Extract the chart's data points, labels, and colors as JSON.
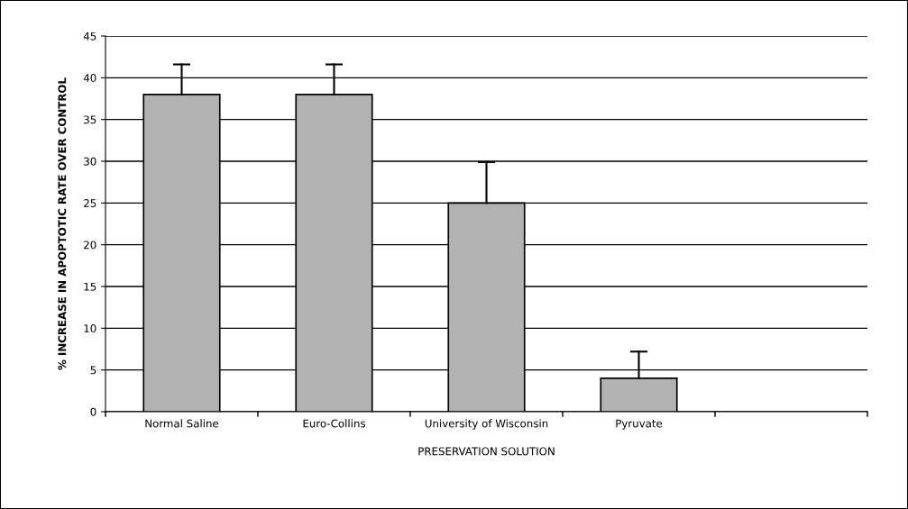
{
  "chart_data": {
    "type": "bar",
    "xlabel": "PRESERVATION SOLUTION",
    "ylabel": "% INCREASE IN APOPTOTIC RATE OVER CONTROL",
    "categories": [
      "Normal Saline",
      "Euro-Collins",
      "University of Wisconsin",
      "Pyruvate",
      null
    ],
    "values": [
      38,
      38,
      25,
      4,
      null
    ],
    "errors": [
      [
        38,
        41.6
      ],
      [
        38,
        41.6
      ],
      [
        25,
        29.9
      ],
      [
        4,
        7.2
      ],
      null
    ],
    "color": "#b2b2b2",
    "ylim": [
      0,
      45
    ],
    "yticks": [
      0,
      5,
      10,
      15,
      20,
      25,
      30,
      35,
      40,
      45
    ],
    "grid": "y"
  }
}
